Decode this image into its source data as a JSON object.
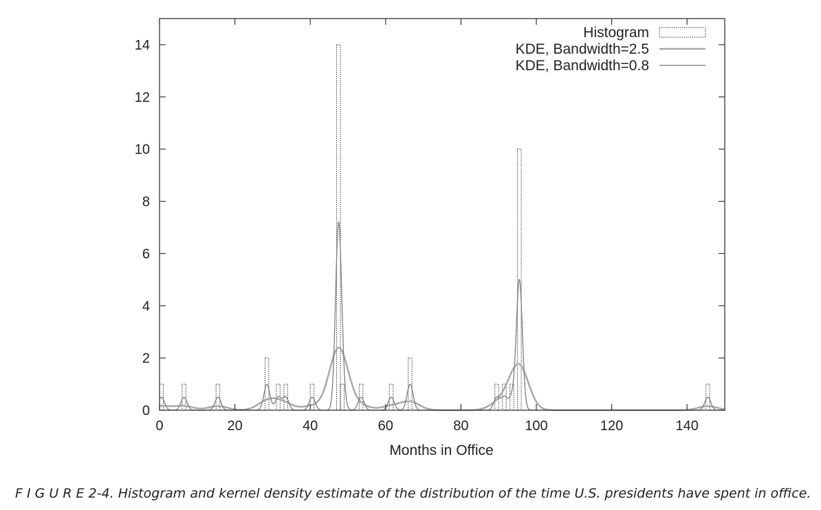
{
  "caption": "F I G U R E 2-4. Histogram and kernel density estimate of the distribution of the time U.S. presidents have spent in office.",
  "colors": {
    "axis": "#333333",
    "histogram": "#333333",
    "kde_wide": "#a8a8a8",
    "kde_narrow": "#7c7c7c"
  },
  "chart_data": {
    "type": "bar",
    "title": "",
    "xlabel": "Months in Office",
    "ylabel": "",
    "xlim": [
      0,
      150
    ],
    "ylim": [
      0,
      15
    ],
    "x_ticks": [
      0,
      20,
      40,
      60,
      80,
      100,
      120,
      140
    ],
    "y_ticks": [
      0,
      2,
      4,
      6,
      8,
      10,
      12,
      14
    ],
    "grid": false,
    "legend_position": "top-right",
    "legend": [
      {
        "label": "Histogram",
        "kind": "histogram"
      },
      {
        "label": "KDE, Bandwidth=2.5",
        "kind": "line"
      },
      {
        "label": "KDE, Bandwidth=0.8",
        "kind": "line"
      }
    ],
    "histogram": {
      "name": "Histogram",
      "bin_width": 1,
      "bins": [
        {
          "x": 0.5,
          "count": 1
        },
        {
          "x": 6.5,
          "count": 1
        },
        {
          "x": 15.5,
          "count": 1
        },
        {
          "x": 28.5,
          "count": 2
        },
        {
          "x": 31.5,
          "count": 1
        },
        {
          "x": 33.5,
          "count": 1
        },
        {
          "x": 40.5,
          "count": 1
        },
        {
          "x": 47.5,
          "count": 14
        },
        {
          "x": 48.5,
          "count": 1
        },
        {
          "x": 53.5,
          "count": 1
        },
        {
          "x": 61.5,
          "count": 1
        },
        {
          "x": 66.5,
          "count": 2
        },
        {
          "x": 89.5,
          "count": 1
        },
        {
          "x": 91.5,
          "count": 1
        },
        {
          "x": 93.5,
          "count": 1
        },
        {
          "x": 95.5,
          "count": 10
        },
        {
          "x": 145.5,
          "count": 1
        }
      ]
    },
    "series": [
      {
        "name": "KDE, Bandwidth=2.5",
        "bandwidth": 2.5
      },
      {
        "name": "KDE, Bandwidth=0.8",
        "bandwidth": 0.8
      }
    ]
  }
}
